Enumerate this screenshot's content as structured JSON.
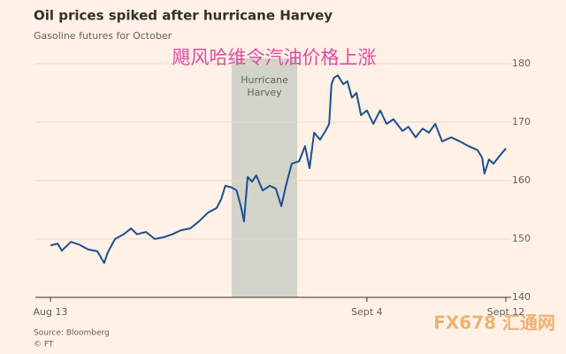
{
  "chart_data": {
    "type": "line",
    "title": "Oil prices spiked after hurricane Harvey",
    "subtitle": "Gasoline futures for October",
    "annotation": "飓风哈维令汽油价格上涨",
    "shade": [
      39.8,
      54.2
    ],
    "shade_label": [
      "Hurricane",
      "Harvey"
    ],
    "source": "Source: Bloomberg",
    "credit": "© FT",
    "watermark": "FX678 汇通网",
    "xlim": [
      0,
      100
    ],
    "xticks": [
      {
        "value": 0,
        "label": "Aug 13"
      },
      {
        "value": 69.5,
        "label": "Sept 4"
      },
      {
        "value": 100,
        "label": "Sept 12"
      }
    ],
    "ylim": [
      140,
      180
    ],
    "yticks": [
      140,
      150,
      160,
      170,
      180
    ],
    "grid": true,
    "series": [
      {
        "color": "#1d4f91",
        "x": [
          0,
          1.6,
          2.5,
          4.5,
          6.4,
          8.3,
          10.3,
          11.8,
          12.6,
          14.2,
          16.1,
          17.7,
          19.0,
          21.0,
          22.9,
          24.9,
          26.8,
          28.7,
          30.7,
          32.6,
          34.6,
          36.5,
          37.5,
          38.4,
          39.8,
          40.9,
          41.9,
          42.5,
          43.3,
          44.3,
          45.2,
          46.6,
          48.2,
          49.5,
          50.7,
          51.7,
          53.0,
          54.6,
          55.9,
          56.9,
          57.9,
          59.2,
          60.4,
          61.2,
          61.7,
          62.3,
          63.1,
          64.3,
          65.2,
          66.2,
          67.2,
          68.2,
          69.5,
          70.9,
          72.4,
          73.8,
          75.3,
          77.3,
          78.6,
          80.2,
          81.7,
          83.1,
          84.5,
          86.0,
          88.0,
          89.9,
          91.8,
          93.8,
          94.8,
          95.3,
          96.3,
          97.3,
          98.6,
          100
        ],
        "values": [
          148.9,
          149.2,
          148.0,
          149.5,
          149.0,
          148.2,
          147.9,
          145.9,
          147.7,
          150.0,
          150.8,
          151.8,
          150.8,
          151.2,
          150.0,
          150.3,
          150.8,
          151.5,
          151.8,
          153.0,
          154.5,
          155.3,
          156.8,
          159.1,
          158.8,
          158.3,
          155.3,
          153.0,
          160.6,
          159.8,
          160.9,
          158.3,
          159.1,
          158.6,
          155.6,
          159.1,
          162.9,
          163.3,
          165.9,
          162.1,
          168.2,
          167.0,
          168.5,
          169.7,
          176.5,
          177.6,
          178.0,
          176.5,
          177.0,
          174.2,
          175.0,
          171.2,
          172.0,
          169.7,
          172.0,
          169.7,
          170.5,
          168.5,
          169.2,
          167.4,
          168.9,
          168.2,
          169.7,
          166.7,
          167.4,
          166.7,
          165.9,
          165.2,
          163.9,
          161.2,
          163.6,
          162.9,
          164.2,
          165.5
        ]
      }
    ]
  }
}
